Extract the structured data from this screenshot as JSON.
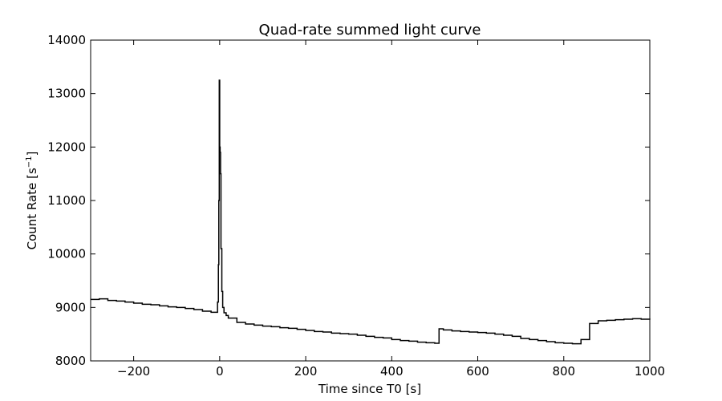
{
  "chart_data": {
    "type": "line",
    "title": "Quad-rate summed light curve",
    "xlabel": "Time since T0 [s]",
    "ylabel_main": "Count Rate [s",
    "ylabel_sup": "−1",
    "ylabel_end": "]",
    "xlim": [
      -300,
      1000
    ],
    "ylim": [
      8000,
      14000
    ],
    "xticks": [
      -200,
      0,
      200,
      400,
      600,
      800,
      1000
    ],
    "xtick_labels": [
      "−200",
      "0",
      "200",
      "400",
      "600",
      "800",
      "1000"
    ],
    "yticks": [
      8000,
      9000,
      10000,
      11000,
      12000,
      13000,
      14000
    ],
    "ytick_labels": [
      "8000",
      "9000",
      "10000",
      "11000",
      "12000",
      "13000",
      "14000"
    ],
    "grid": false,
    "series": [
      {
        "color": "#000000",
        "x": [
          -300,
          -280,
          -260,
          -240,
          -220,
          -200,
          -180,
          -160,
          -140,
          -120,
          -100,
          -80,
          -60,
          -40,
          -20,
          -5,
          -3,
          -2,
          -1,
          0,
          1,
          2,
          3,
          5,
          7,
          10,
          15,
          20,
          40,
          60,
          80,
          100,
          120,
          140,
          160,
          180,
          200,
          220,
          240,
          260,
          280,
          300,
          320,
          340,
          360,
          380,
          400,
          420,
          440,
          460,
          480,
          500,
          510,
          520,
          540,
          560,
          580,
          600,
          620,
          640,
          660,
          680,
          700,
          720,
          740,
          760,
          780,
          800,
          820,
          840,
          860,
          880,
          900,
          920,
          940,
          960,
          980,
          1000
        ],
        "y": [
          9150,
          9160,
          9130,
          9120,
          9100,
          9080,
          9060,
          9050,
          9030,
          9010,
          9000,
          8980,
          8960,
          8930,
          8910,
          9100,
          9800,
          11000,
          13250,
          12000,
          11900,
          11500,
          10100,
          9300,
          9000,
          8900,
          8850,
          8800,
          8720,
          8690,
          8670,
          8650,
          8640,
          8620,
          8610,
          8590,
          8570,
          8550,
          8540,
          8520,
          8510,
          8500,
          8480,
          8460,
          8440,
          8430,
          8400,
          8380,
          8370,
          8350,
          8340,
          8330,
          8600,
          8580,
          8560,
          8550,
          8540,
          8530,
          8520,
          8500,
          8480,
          8460,
          8420,
          8400,
          8380,
          8360,
          8340,
          8330,
          8320,
          8400,
          8700,
          8750,
          8760,
          8770,
          8780,
          8790,
          8780,
          8770
        ]
      }
    ]
  }
}
